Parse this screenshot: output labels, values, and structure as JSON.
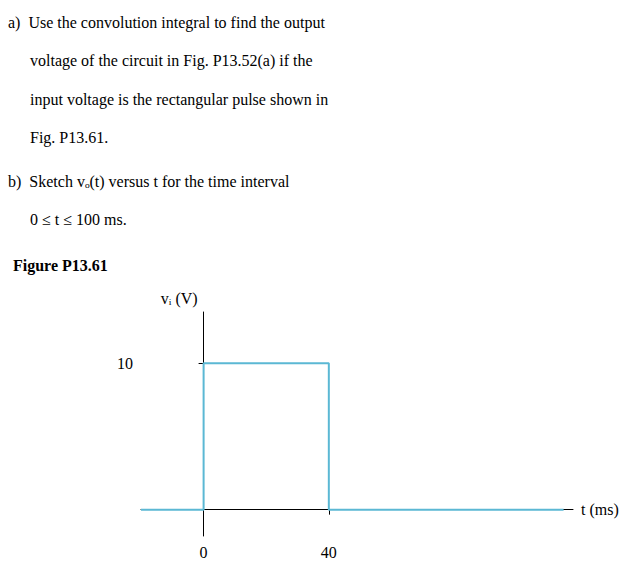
{
  "chart_data": {
    "type": "line",
    "title": "Figure P13.61",
    "annotations": [
      [
        "a) Use the convolution integral to find the output",
        "voltage of the circuit in Fig. P13.52(a) if the",
        "input voltage is the rectangular pulse shown in",
        "Fig. P13.61."
      ],
      [
        "b) Sketch vₒ(t) versus t for the time interval",
        "0 ≤ t ≤ 100 ms."
      ]
    ],
    "x": [
      -20,
      0,
      0,
      40,
      40,
      115
    ],
    "values": [
      0,
      0,
      10,
      10,
      0,
      0
    ],
    "color": "#5bb8d4",
    "xlabel": "t (ms)",
    "ylabel": "vᵢ (V)",
    "xlim": [
      -20,
      118
    ],
    "ylim": [
      -1.8,
      13.5
    ],
    "xticks": [
      0,
      40
    ],
    "yticks": [
      10
    ],
    "grid": false
  }
}
